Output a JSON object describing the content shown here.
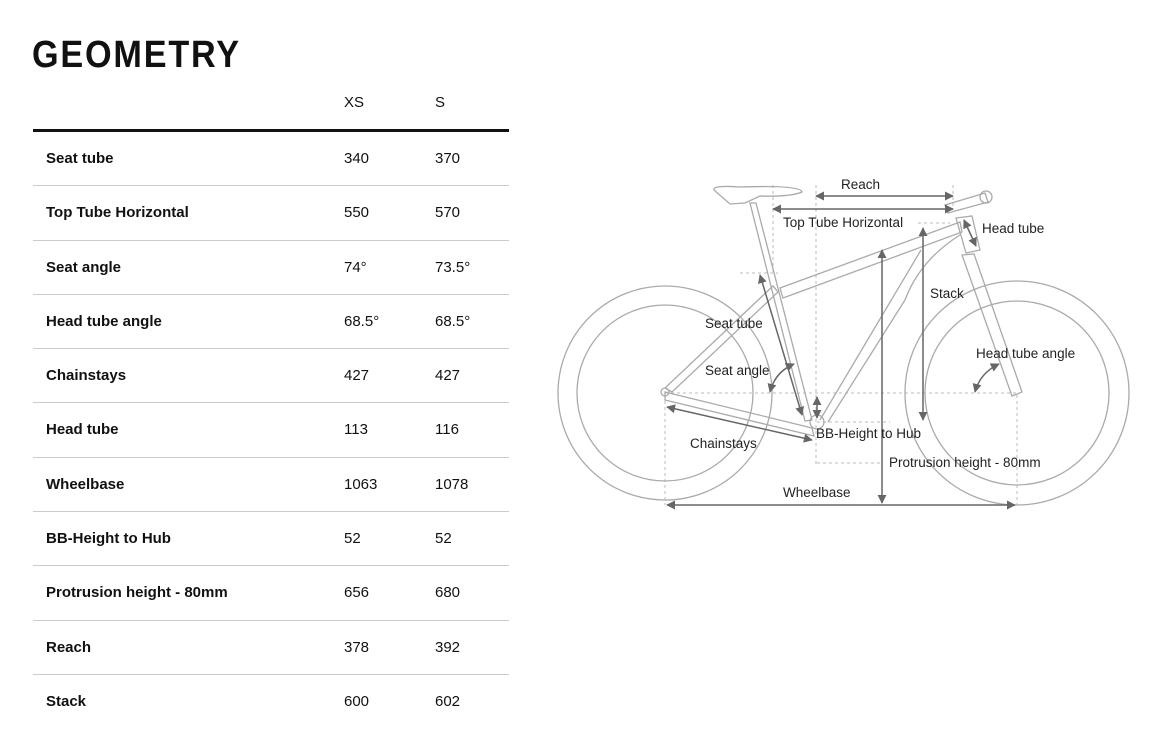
{
  "title": "GEOMETRY",
  "columns": [
    "XS",
    "S"
  ],
  "rows": [
    {
      "label": "Seat tube",
      "values": [
        "340",
        "370"
      ]
    },
    {
      "label": "Top Tube Horizontal",
      "values": [
        "550",
        "570"
      ]
    },
    {
      "label": "Seat angle",
      "values": [
        "74°",
        "73.5°"
      ]
    },
    {
      "label": "Head tube angle",
      "values": [
        "68.5°",
        "68.5°"
      ]
    },
    {
      "label": "Chainstays",
      "values": [
        "427",
        "427"
      ]
    },
    {
      "label": "Head tube",
      "values": [
        "113",
        "116"
      ]
    },
    {
      "label": "Wheelbase",
      "values": [
        "1063",
        "1078"
      ]
    },
    {
      "label": "BB-Height to Hub",
      "values": [
        "52",
        "52"
      ]
    },
    {
      "label": "Protrusion height - 80mm",
      "values": [
        "656",
        "680"
      ]
    },
    {
      "label": "Reach",
      "values": [
        "378",
        "392"
      ]
    },
    {
      "label": "Stack",
      "values": [
        "600",
        "602"
      ]
    }
  ],
  "diagram": {
    "reach": "Reach",
    "tth": "Top Tube Horizontal",
    "head_tube": "Head tube",
    "stack": "Stack",
    "seat_tube": "Seat tube",
    "seat_angle": "Seat angle",
    "head_tube_angle": "Head tube angle",
    "chainstays": "Chainstays",
    "bb_height": "BB-Height to Hub",
    "protrusion": "Protrusion height - 80mm",
    "wheelbase": "Wheelbase"
  }
}
